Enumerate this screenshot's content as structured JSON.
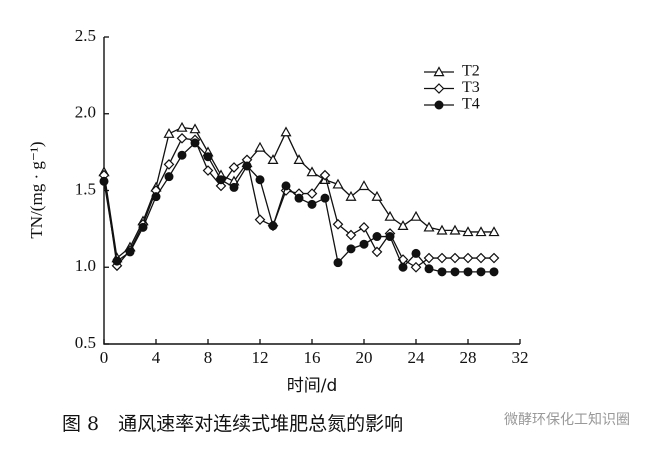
{
  "chart_data": {
    "type": "line",
    "y_label": "TN/(mg · g⁻¹)",
    "x_label": "时间/d",
    "caption": "图 8　通风速率对连续式堆肥总氮的影响",
    "watermark": "微酵环保化工知识圈",
    "x": [
      0,
      1,
      2,
      3,
      4,
      5,
      6,
      7,
      8,
      9,
      10,
      11,
      12,
      13,
      14,
      15,
      16,
      17,
      18,
      19,
      20,
      21,
      22,
      23,
      24,
      25,
      26,
      27,
      28,
      29,
      30
    ],
    "series": [
      {
        "name": "T2",
        "color": "#111111",
        "marker": "triangle",
        "values": [
          1.62,
          1.06,
          1.13,
          1.3,
          1.52,
          1.87,
          1.91,
          1.9,
          1.75,
          1.6,
          1.56,
          1.68,
          1.78,
          1.7,
          1.88,
          1.7,
          1.62,
          1.57,
          1.54,
          1.46,
          1.53,
          1.46,
          1.33,
          1.27,
          1.33,
          1.26,
          1.24,
          1.24,
          1.23,
          1.23,
          1.23
        ]
      },
      {
        "name": "T3",
        "color": "#111111",
        "marker": "diamond",
        "values": [
          1.6,
          1.01,
          1.11,
          1.28,
          1.5,
          1.67,
          1.84,
          1.83,
          1.63,
          1.53,
          1.65,
          1.7,
          1.31,
          1.27,
          1.5,
          1.48,
          1.48,
          1.6,
          1.28,
          1.21,
          1.26,
          1.1,
          1.22,
          1.05,
          1.0,
          1.06,
          1.06,
          1.06,
          1.06,
          1.06,
          1.06
        ]
      },
      {
        "name": "T4",
        "color": "#111111",
        "marker": "circle",
        "values": [
          1.56,
          1.04,
          1.1,
          1.26,
          1.46,
          1.59,
          1.73,
          1.81,
          1.72,
          1.57,
          1.52,
          1.66,
          1.57,
          1.27,
          1.53,
          1.45,
          1.41,
          1.45,
          1.03,
          1.12,
          1.15,
          1.2,
          1.2,
          1.0,
          1.09,
          0.99,
          0.97,
          0.97,
          0.97,
          0.97,
          0.97
        ]
      }
    ],
    "xlim": [
      0,
      32
    ],
    "xticks": [
      0,
      4,
      8,
      12,
      16,
      20,
      24,
      28,
      32
    ],
    "ylim": [
      0.5,
      2.5
    ],
    "yticks": [
      0.5,
      {
        "value": 1.0,
        "label": "1.0"
      },
      1.5,
      {
        "value": 2.0,
        "label": "2.0"
      },
      2.5
    ],
    "legend": "upper right"
  }
}
